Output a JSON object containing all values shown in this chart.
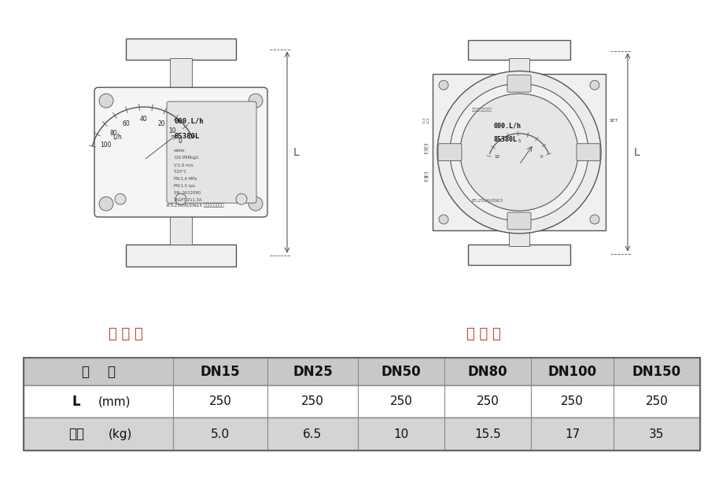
{
  "background_color": "#ffffff",
  "label1": "本 安 型",
  "label2": "隔 爆 型",
  "label1_color": "#c0392b",
  "label2_color": "#c0392b",
  "table_header": [
    "口    径",
    "DN15",
    "DN25",
    "DN50",
    "DN80",
    "DN100",
    "DN150"
  ],
  "row1_label": "L",
  "row1_unit": "(mm)",
  "row1_values": [
    "250",
    "250",
    "250",
    "250",
    "250",
    "250"
  ],
  "row2_label": "重量",
  "row2_unit": "(kg)",
  "row2_values": [
    "5.0",
    "6.5",
    "10",
    "15.5",
    "17",
    "35"
  ],
  "header_bg": "#c8c8c8",
  "row2_bg": "#d4d4d4",
  "row1_bg": "#ffffff",
  "font_size_label": 13,
  "font_size_table": 11,
  "font_size_header": 12
}
